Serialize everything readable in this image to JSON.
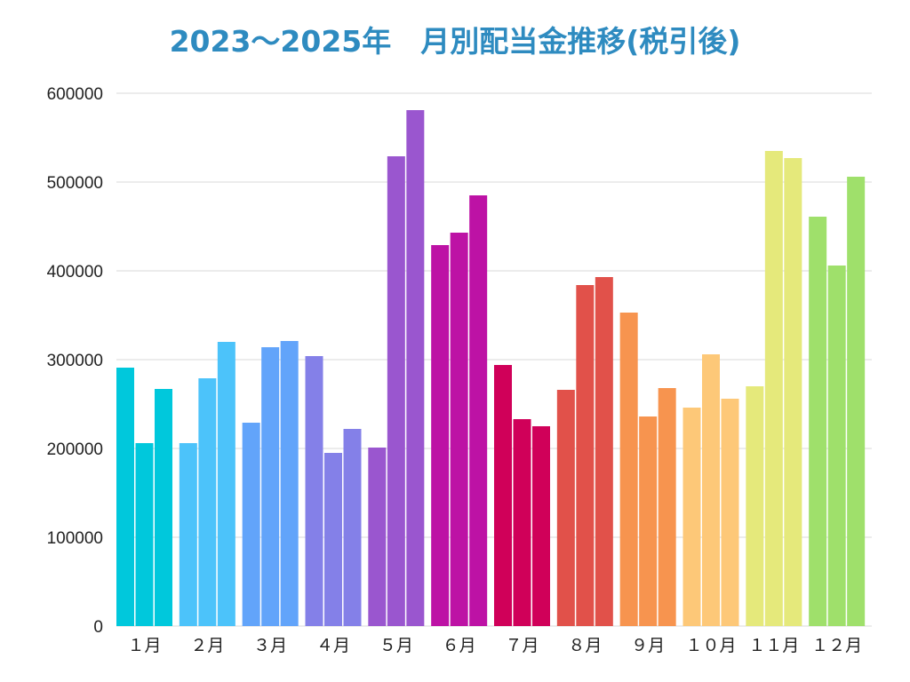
{
  "chart_data": {
    "type": "bar",
    "title": "2023～2025年　月別配当金推移(税引後)",
    "title_color": "#2e8bc0",
    "categories": [
      "１月",
      "２月",
      "３月",
      "４月",
      "５月",
      "６月",
      "７月",
      "８月",
      "９月",
      "１０月",
      "１１月",
      "１２月"
    ],
    "category_colors": [
      "#00c8dc",
      "#4cc3fa",
      "#62a4fa",
      "#8480e8",
      "#9a56cf",
      "#bd12a5",
      "#d00059",
      "#e1514a",
      "#f7944f",
      "#fdc878",
      "#e5e97b",
      "#9fe06b"
    ],
    "series": [
      {
        "values": [
          291000,
          206000,
          229000,
          304000,
          201000,
          429000,
          294000,
          266000,
          353000,
          246000,
          270000,
          461000
        ]
      },
      {
        "values": [
          206000,
          279000,
          314000,
          195000,
          529000,
          443000,
          233000,
          384000,
          236000,
          306000,
          535000,
          406000
        ]
      },
      {
        "values": [
          267000,
          320000,
          321000,
          222000,
          581000,
          485000,
          225000,
          393000,
          268000,
          256000,
          527000,
          506000
        ]
      }
    ],
    "ylim": [
      0,
      600000
    ],
    "yticks": [
      "0",
      "100000",
      "200000",
      "300000",
      "400000",
      "500000",
      "600000"
    ],
    "grid": true,
    "xlabel": "",
    "ylabel": ""
  }
}
